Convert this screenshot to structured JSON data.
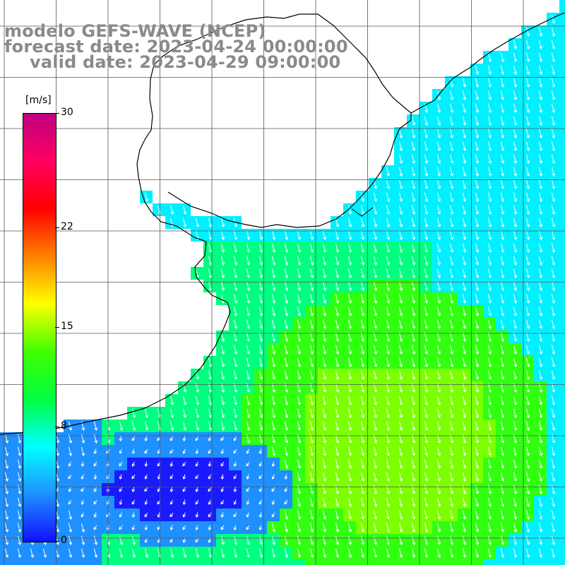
{
  "title": {
    "line1": "modelo GEFS-WAVE (NCEP)",
    "line2": "forecast date: 2023-04-24 00:00:00",
    "line3": "valid date: 2023-04-29 09:00:00"
  },
  "colorbar": {
    "unit": "[m/s]",
    "ticks": [
      {
        "label": "30",
        "value": 30
      },
      {
        "label": "22",
        "value": 22
      },
      {
        "label": "15",
        "value": 15
      },
      {
        "label": "8",
        "value": 8
      },
      {
        "label": "0",
        "value": 0
      }
    ],
    "range": [
      0,
      30
    ],
    "colors": [
      "#1010ff",
      "#1e90ff",
      "#00ffff",
      "#00ff40",
      "#40ff00",
      "#ffff00",
      "#ff8000",
      "#ff0000",
      "#ff0060",
      "#c00080"
    ]
  },
  "map": {
    "region": "South Atlantic off Uruguay / southern Brazil",
    "variable": "wind speed and direction",
    "ocean_colors": {
      "calm": "#1a1aff",
      "low": "#1e90ff",
      "cyan": "#00f0ff",
      "mid": "#00ff80",
      "high": "#30ff10",
      "strong": "#7cff00"
    },
    "land_color": "#ffffff",
    "arrow_color": "#ffffff",
    "coast_color": "#000000"
  },
  "chart_data": {
    "type": "heatmap",
    "title": "modelo GEFS-WAVE (NCEP)",
    "colorbar_label": "[m/s]",
    "colorbar_range": [
      0,
      30
    ],
    "colorbar_ticks": [
      0,
      8,
      15,
      22,
      30
    ],
    "wind_direction": "predominantly from the north/northeast toward the south/southwest"
  }
}
